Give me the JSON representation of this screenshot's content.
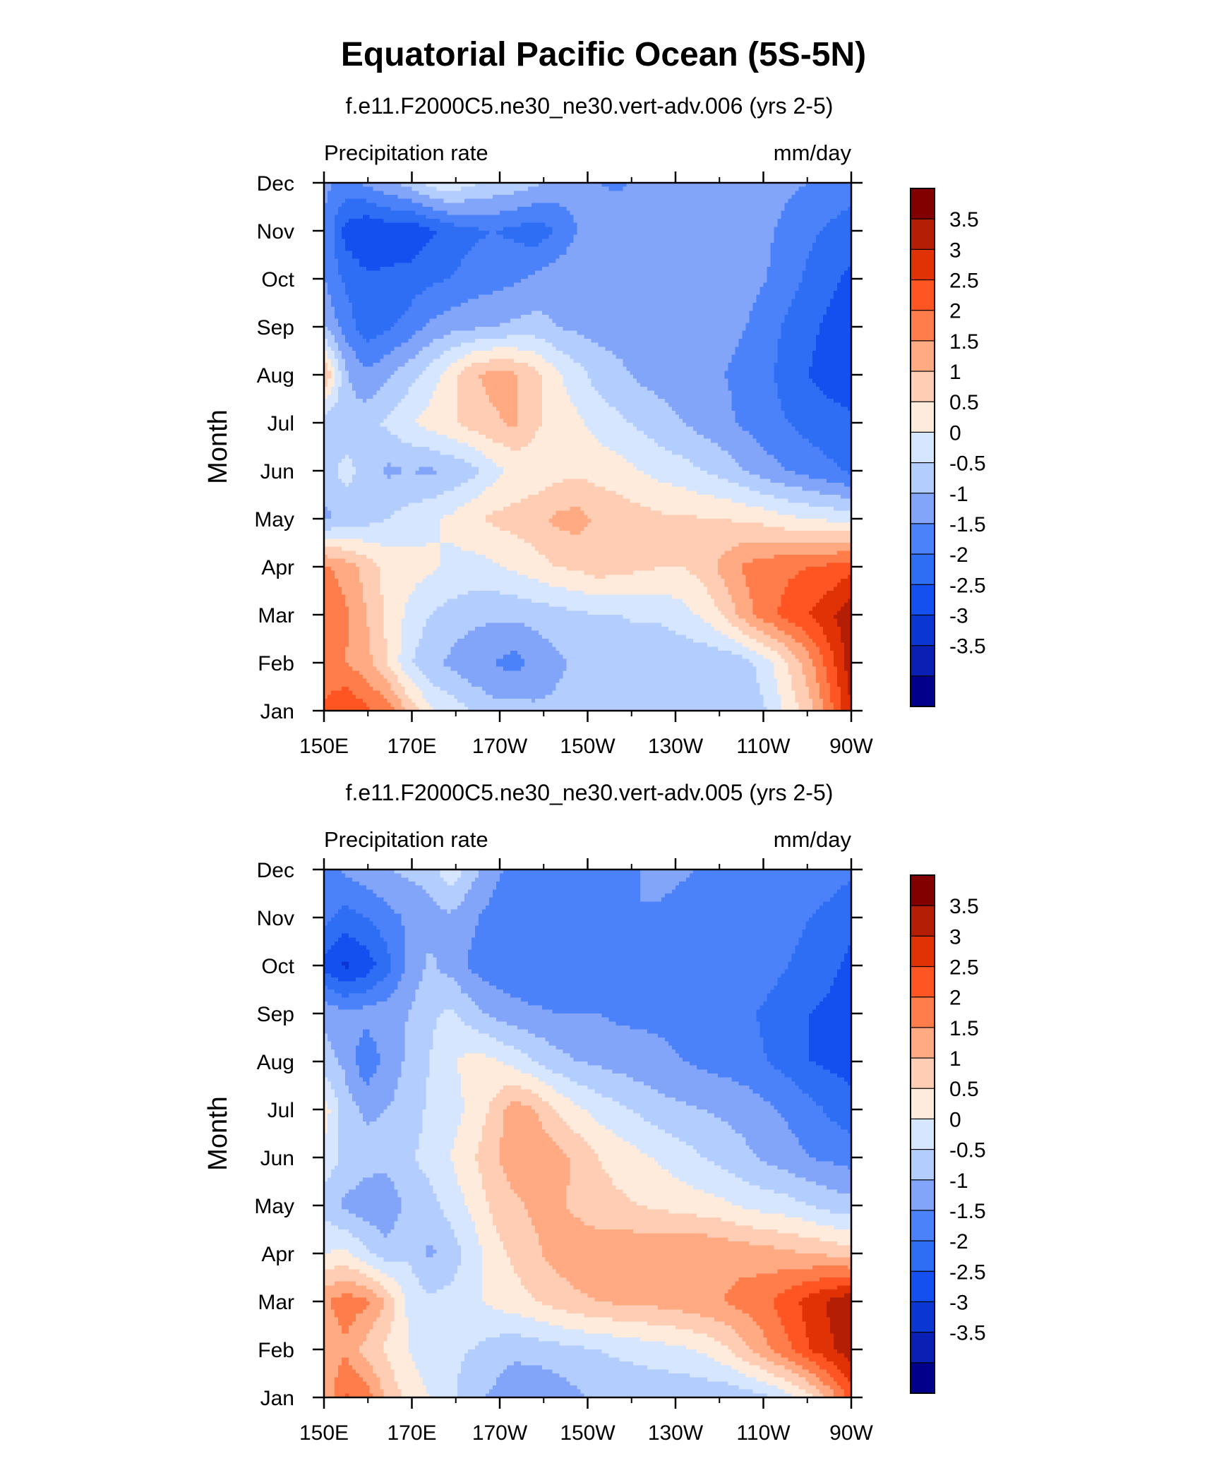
{
  "figure": {
    "title": "Equatorial Pacific Ocean (5S-5N)"
  },
  "palette": {
    "levels": [
      -3.5,
      -3,
      -2.5,
      -2,
      -1.5,
      -1,
      -0.5,
      0,
      0.5,
      1,
      1.5,
      2,
      2.5,
      3,
      3.5
    ],
    "colorbar_labels": [
      "3.5",
      "3",
      "2.5",
      "2",
      "1.5",
      "1",
      "0.5",
      "0",
      "-0.5",
      "-1",
      "-1.5",
      "-2",
      "-2.5",
      "-3",
      "-3.5"
    ],
    "colors": [
      "#00008a",
      "#0a20b4",
      "#0a37d2",
      "#1450f0",
      "#2d6ef5",
      "#4b82fa",
      "#82a5fa",
      "#b4cdff",
      "#d7e6ff",
      "#ffebdc",
      "#ffcdb4",
      "#ffaa82",
      "#ff7d4b",
      "#ff5523",
      "#e13205",
      "#b41e05",
      "#820000"
    ]
  },
  "chart_data": [
    {
      "type": "heatmap",
      "title": "f.e11.F2000C5.ne30_ne30.vert-adv.006 (yrs 2-5)",
      "left_label": "Precipitation rate",
      "right_label": "mm/day",
      "ylabel": "Month",
      "x_ticks": [
        "150E",
        "170E",
        "170W",
        "150W",
        "130W",
        "110W",
        "90W"
      ],
      "y_ticks": [
        "Jan",
        "Feb",
        "Mar",
        "Apr",
        "May",
        "Jun",
        "Jul",
        "Aug",
        "Sep",
        "Oct",
        "Nov",
        "Dec"
      ],
      "x_range_lon_east": [
        150,
        270
      ],
      "z_units": "mm/day",
      "z_grid": [
        [
          2.6,
          3.0,
          2.6,
          2.3,
          1.4,
          0.6,
          0.3,
          0.0,
          -0.3,
          -0.3,
          -0.4,
          -0.4,
          -0.4,
          -0.4,
          -0.4,
          -0.4,
          -0.4,
          -0.4,
          -0.4,
          -0.4,
          -0.3,
          0.0,
          0.7,
          1.3,
          2.3,
          3.5
        ],
        [
          2.1,
          2.0,
          1.7,
          1.0,
          0.1,
          -0.4,
          -0.6,
          -0.9,
          -1.0,
          -1.2,
          -0.9,
          -0.6,
          -0.4,
          -0.4,
          -0.4,
          -0.4,
          -0.4,
          -0.4,
          -0.4,
          -0.4,
          -0.2,
          0.3,
          1.0,
          1.8,
          2.8,
          3.8
        ],
        [
          2.3,
          2.1,
          1.5,
          0.9,
          0.4,
          0.0,
          -0.2,
          -0.3,
          -0.4,
          -0.4,
          -0.3,
          -0.2,
          -0.1,
          0.0,
          0.0,
          0.1,
          0.1,
          0.3,
          0.6,
          1.1,
          1.8,
          2.3,
          2.7,
          3.0,
          3.4,
          3.9
        ],
        [
          2.1,
          1.8,
          1.3,
          0.8,
          0.7,
          0.6,
          0.4,
          0.3,
          0.4,
          0.6,
          0.8,
          1.0,
          1.1,
          1.3,
          1.2,
          1.1,
          1.0,
          1.0,
          1.2,
          1.7,
          2.1,
          2.3,
          2.4,
          2.5,
          2.6,
          2.8
        ],
        [
          -0.6,
          -0.4,
          -0.2,
          0.0,
          0.2,
          0.4,
          0.6,
          0.9,
          1.1,
          1.2,
          1.3,
          1.6,
          1.7,
          1.4,
          1.3,
          1.2,
          1.1,
          1.1,
          1.0,
          1.0,
          0.9,
          0.8,
          0.6,
          0.5,
          0.4,
          0.3
        ],
        [
          -0.3,
          0.2,
          -0.2,
          -0.6,
          -0.5,
          -0.6,
          -0.4,
          -0.2,
          0.3,
          0.6,
          0.7,
          0.8,
          0.9,
          0.8,
          0.7,
          0.5,
          0.3,
          0.2,
          0.0,
          -0.2,
          -0.5,
          -0.8,
          -1.0,
          -1.2,
          -1.4,
          -1.6
        ],
        [
          -0.3,
          -0.4,
          -0.2,
          0.1,
          0.4,
          0.7,
          0.9,
          1.2,
          1.4,
          1.6,
          1.1,
          0.8,
          0.6,
          0.3,
          0.1,
          -0.1,
          -0.3,
          -0.5,
          -0.7,
          -0.9,
          -1.1,
          -1.3,
          -1.5,
          -1.7,
          -1.8,
          -1.9
        ],
        [
          1.6,
          -0.4,
          -0.9,
          -0.6,
          -0.2,
          0.2,
          0.8,
          1.4,
          1.7,
          1.6,
          1.2,
          0.6,
          0.2,
          -0.2,
          -0.4,
          -0.6,
          -0.7,
          -0.8,
          -0.9,
          -1.0,
          -1.1,
          -1.4,
          -1.7,
          -2.0,
          -2.2,
          -2.3
        ],
        [
          -0.5,
          -1.2,
          -1.8,
          -1.6,
          -1.3,
          -0.9,
          -0.7,
          -0.6,
          -0.5,
          -0.4,
          -0.3,
          -0.5,
          -0.6,
          -0.7,
          -0.7,
          -0.7,
          -0.7,
          -0.7,
          -0.8,
          -0.9,
          -1.0,
          -1.3,
          -1.6,
          -1.9,
          -2.1,
          -2.2
        ],
        [
          -1.0,
          -1.6,
          -1.9,
          -1.9,
          -1.8,
          -1.6,
          -1.5,
          -1.3,
          -1.2,
          -1.1,
          -0.9,
          -0.7,
          -0.6,
          -0.6,
          -0.6,
          -0.6,
          -0.6,
          -0.6,
          -0.6,
          -0.7,
          -0.8,
          -1.0,
          -1.3,
          -1.6,
          -1.9,
          -2.1
        ],
        [
          -1.0,
          -2.2,
          -2.5,
          -2.3,
          -2.4,
          -2.1,
          -1.8,
          -1.6,
          -1.5,
          -1.6,
          -1.8,
          -1.5,
          -1.0,
          -0.7,
          -0.6,
          -0.5,
          -0.5,
          -0.5,
          -0.5,
          -0.6,
          -0.7,
          -0.9,
          -1.2,
          -1.4,
          -1.6,
          -1.8
        ],
        [
          -0.9,
          -1.1,
          -0.9,
          -0.6,
          -0.3,
          0.2,
          0.4,
          0.1,
          -0.1,
          -0.2,
          -0.4,
          -0.6,
          -0.8,
          -1.0,
          -1.1,
          -0.9,
          -0.7,
          -0.6,
          -0.6,
          -0.6,
          -0.6,
          -0.7,
          -0.9,
          -1.0,
          -1.1,
          -1.2
        ]
      ]
    },
    {
      "type": "heatmap",
      "title": "f.e11.F2000C5.ne30_ne30.vert-adv.005 (yrs 2-5)",
      "left_label": "Precipitation rate",
      "right_label": "mm/day",
      "ylabel": "Month",
      "x_ticks": [
        "150E",
        "170E",
        "170W",
        "150W",
        "130W",
        "110W",
        "90W"
      ],
      "y_ticks": [
        "Jan",
        "Feb",
        "Mar",
        "Apr",
        "May",
        "Jun",
        "Jul",
        "Aug",
        "Sep",
        "Oct",
        "Nov",
        "Dec"
      ],
      "x_range_lon_east": [
        150,
        270
      ],
      "z_grid": [
        [
          1.5,
          2.6,
          2.3,
          1.4,
          0.8,
          0.5,
          0.1,
          -0.3,
          -0.6,
          -0.8,
          -0.9,
          -0.8,
          -0.6,
          -0.4,
          -0.4,
          -0.4,
          -0.4,
          -0.4,
          -0.4,
          -0.4,
          -0.3,
          -0.1,
          0.3,
          0.8,
          1.7,
          2.7
        ],
        [
          1.6,
          1.9,
          1.3,
          0.9,
          0.5,
          0.2,
          0.1,
          0.0,
          -0.2,
          -0.4,
          -0.3,
          -0.2,
          -0.1,
          0.0,
          0.1,
          0.2,
          0.3,
          0.4,
          0.6,
          0.9,
          1.4,
          1.9,
          2.4,
          3.0,
          3.4,
          3.8
        ],
        [
          1.9,
          2.3,
          2.1,
          1.4,
          0.4,
          0.1,
          0.2,
          0.4,
          0.6,
          0.8,
          1.0,
          1.2,
          1.4,
          1.5,
          1.6,
          1.6,
          1.7,
          1.8,
          1.9,
          2.0,
          2.2,
          2.4,
          2.8,
          3.2,
          3.6,
          3.9
        ],
        [
          0.5,
          0.6,
          0.1,
          -0.3,
          -0.1,
          -0.6,
          -0.3,
          0.2,
          0.8,
          1.1,
          1.4,
          1.7,
          1.8,
          1.8,
          1.9,
          1.9,
          1.9,
          2.0,
          2.0,
          1.9,
          1.8,
          1.7,
          1.6,
          1.5,
          1.4,
          1.2
        ],
        [
          -0.2,
          -0.6,
          -0.8,
          -0.9,
          -0.3,
          -0.2,
          0.2,
          0.6,
          1.1,
          1.4,
          1.6,
          1.6,
          1.4,
          1.2,
          1.1,
          1.0,
          0.9,
          0.8,
          0.7,
          0.6,
          0.4,
          0.3,
          0.2,
          0.0,
          -0.2,
          -0.3
        ],
        [
          0.3,
          -0.1,
          -0.3,
          -0.3,
          -0.1,
          0.2,
          0.5,
          0.9,
          1.4,
          1.8,
          1.9,
          1.7,
          1.4,
          1.0,
          0.8,
          0.6,
          0.4,
          0.2,
          0.0,
          -0.2,
          -0.4,
          -0.6,
          -0.8,
          -1.0,
          -1.1,
          -1.2
        ],
        [
          0.8,
          -0.3,
          -0.6,
          -0.5,
          -0.3,
          0.1,
          0.3,
          0.6,
          1.1,
          1.8,
          1.5,
          1.0,
          0.6,
          0.3,
          0.1,
          -0.1,
          -0.3,
          -0.4,
          -0.5,
          -0.6,
          -0.7,
          -0.9,
          -1.1,
          -1.3,
          -1.6,
          -1.8
        ],
        [
          -0.3,
          -0.6,
          -1.4,
          -0.8,
          -0.4,
          0.0,
          0.4,
          0.7,
          0.6,
          0.3,
          0.0,
          -0.3,
          -0.5,
          -0.6,
          -0.7,
          -0.8,
          -0.9,
          -1.0,
          -1.1,
          -1.2,
          -1.3,
          -1.5,
          -1.7,
          -2.0,
          -2.1,
          -2.2
        ],
        [
          -0.6,
          -0.9,
          -0.8,
          -0.7,
          -0.5,
          -0.1,
          0.1,
          -0.3,
          -0.6,
          -0.8,
          -0.9,
          -1.0,
          -1.0,
          -1.0,
          -1.1,
          -1.1,
          -1.1,
          -1.2,
          -1.2,
          -1.3,
          -1.4,
          -1.6,
          -1.8,
          -2.0,
          -2.1,
          -2.2
        ],
        [
          -2.2,
          -2.6,
          -2.3,
          -1.7,
          -0.9,
          -0.4,
          -0.7,
          -1.1,
          -1.3,
          -1.4,
          -1.5,
          -1.5,
          -1.4,
          -1.3,
          -1.4,
          -1.5,
          -1.3,
          -1.2,
          -1.1,
          -1.1,
          -1.2,
          -1.3,
          -1.5,
          -1.7,
          -1.9,
          -2.1
        ],
        [
          -1.3,
          -1.7,
          -1.5,
          -1.2,
          -0.9,
          -0.7,
          -0.6,
          -0.9,
          -1.2,
          -1.4,
          -1.5,
          -1.5,
          -1.4,
          -1.3,
          -1.2,
          -1.0,
          -1.1,
          -1.3,
          -1.4,
          -1.4,
          -1.3,
          -1.2,
          -1.3,
          -1.5,
          -1.7,
          -1.9
        ],
        [
          -1.2,
          -0.9,
          -0.7,
          -0.5,
          -0.4,
          -0.3,
          0.4,
          -0.3,
          -0.8,
          -1.2,
          -1.3,
          -1.3,
          -1.3,
          -1.3,
          -1.2,
          -1.0,
          -0.8,
          -0.9,
          -1.1,
          -1.2,
          -1.2,
          -1.1,
          -1.0,
          -1.1,
          -1.2,
          -1.4
        ]
      ]
    }
  ]
}
